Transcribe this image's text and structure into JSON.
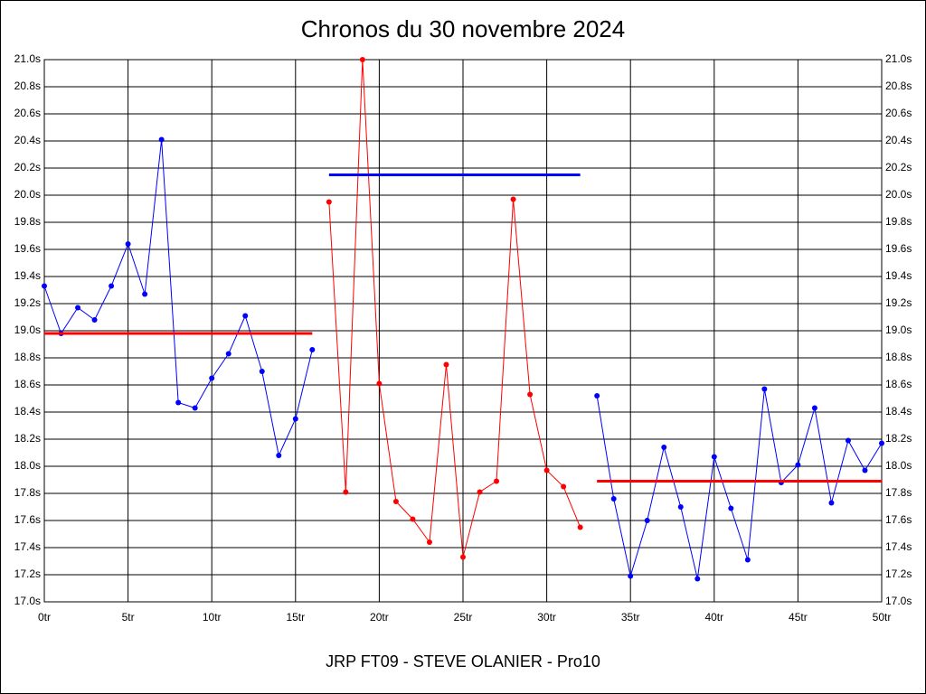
{
  "chart_data": {
    "type": "line",
    "title": "Chronos du 30 novembre 2024",
    "footer": "JRP FT09 - STEVE OLANIER - Pro10",
    "xlim": [
      0,
      50
    ],
    "xticks": [
      {
        "value": 0,
        "label": "0tr"
      },
      {
        "value": 5,
        "label": "5tr"
      },
      {
        "value": 10,
        "label": "10tr"
      },
      {
        "value": 15,
        "label": "15tr"
      },
      {
        "value": 20,
        "label": "20tr"
      },
      {
        "value": 25,
        "label": "25tr"
      },
      {
        "value": 30,
        "label": "30tr"
      },
      {
        "value": 35,
        "label": "35tr"
      },
      {
        "value": 40,
        "label": "40tr"
      },
      {
        "value": 45,
        "label": "45tr"
      },
      {
        "value": 50,
        "label": "50tr"
      }
    ],
    "ylim": [
      17,
      21
    ],
    "yticks": [
      {
        "value": 17.0,
        "label": "17.0s"
      },
      {
        "value": 17.2,
        "label": "17.2s"
      },
      {
        "value": 17.4,
        "label": "17.4s"
      },
      {
        "value": 17.6,
        "label": "17.6s"
      },
      {
        "value": 17.8,
        "label": "17.8s"
      },
      {
        "value": 18.0,
        "label": "18.0s"
      },
      {
        "value": 18.2,
        "label": "18.2s"
      },
      {
        "value": 18.4,
        "label": "18.4s"
      },
      {
        "value": 18.6,
        "label": "18.6s"
      },
      {
        "value": 18.8,
        "label": "18.8s"
      },
      {
        "value": 19.0,
        "label": "19.0s"
      },
      {
        "value": 19.2,
        "label": "19.2s"
      },
      {
        "value": 19.4,
        "label": "19.4s"
      },
      {
        "value": 19.6,
        "label": "19.6s"
      },
      {
        "value": 19.8,
        "label": "19.8s"
      },
      {
        "value": 20.0,
        "label": "20.0s"
      },
      {
        "value": 20.2,
        "label": "20.2s"
      },
      {
        "value": 20.4,
        "label": "20.4s"
      },
      {
        "value": 20.6,
        "label": "20.6s"
      },
      {
        "value": 20.8,
        "label": "20.8s"
      },
      {
        "value": 21.0,
        "label": "21.0s"
      }
    ],
    "grid": true,
    "series": [
      {
        "color": "#0000ff",
        "x": [
          0,
          1,
          2,
          3,
          4,
          5,
          6,
          7,
          8,
          9,
          10,
          11,
          12,
          13,
          14,
          15,
          16
        ],
        "values": [
          19.33,
          18.98,
          19.17,
          19.08,
          19.33,
          19.64,
          19.27,
          20.41,
          18.47,
          18.43,
          18.65,
          18.83,
          19.11,
          18.7,
          18.08,
          18.35,
          18.86
        ]
      },
      {
        "color": "#ff0000",
        "x": [
          17,
          18,
          19,
          20,
          21,
          22,
          23,
          24,
          25,
          26,
          27,
          28,
          29,
          30,
          31,
          32
        ],
        "values": [
          19.95,
          17.81,
          21.0,
          18.61,
          17.74,
          17.61,
          17.44,
          18.75,
          17.33,
          17.81,
          17.89,
          19.97,
          18.53,
          17.97,
          17.85,
          17.55
        ]
      },
      {
        "color": "#0000ff",
        "x": [
          33,
          34,
          35,
          36,
          37,
          38,
          39,
          40,
          41,
          42,
          43,
          44,
          45,
          46,
          47,
          48,
          49,
          50
        ],
        "values": [
          18.52,
          17.76,
          17.19,
          17.6,
          18.14,
          17.7,
          17.17,
          18.07,
          17.69,
          17.31,
          18.57,
          17.88,
          18.01,
          18.43,
          17.73,
          18.19,
          17.97,
          18.17
        ]
      }
    ],
    "reference_lines": [
      {
        "color": "#ff0000",
        "x": [
          0,
          16
        ],
        "value": 18.98
      },
      {
        "color": "#0000ff",
        "x": [
          17,
          32
        ],
        "value": 20.15
      },
      {
        "color": "#ff0000",
        "x": [
          33,
          50
        ],
        "value": 17.89
      }
    ]
  }
}
